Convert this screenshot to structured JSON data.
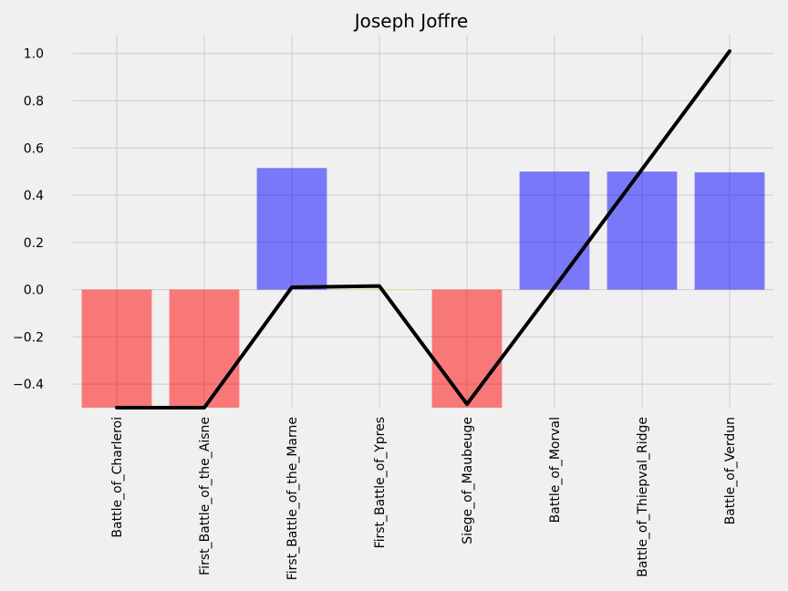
{
  "chart_data": {
    "type": "bar",
    "title": "Joseph Joffre",
    "categories": [
      "Battle_of_Charleroi",
      "First_Battle_of_the_Aisne",
      "First_Battle_of_the_Marne",
      "First_Battle_of_Ypres",
      "Siege_of_Maubeuge",
      "Battle_of_Morval",
      "Battle_of_Thiepval_Ridge",
      "Battle_of_Verdun"
    ],
    "values": [
      -0.5,
      -0.5,
      0.515,
      0.0,
      -0.5,
      0.5,
      0.5,
      0.497
    ],
    "bar_colors": [
      "#ff0000",
      "#ff0000",
      "#0000ff",
      "#ffff00",
      "#ff0000",
      "#0000ff",
      "#0000ff",
      "#0000ff"
    ],
    "line": {
      "values": [
        -0.5,
        -0.5,
        0.01,
        0.015,
        -0.485,
        0.01,
        0.51,
        1.01
      ],
      "color": "#000000"
    },
    "ylim": [
      -0.5,
      1.08
    ],
    "yticks": [
      "−0.4",
      "−0.2",
      "0.0",
      "0.2",
      "0.4",
      "0.6",
      "0.8",
      "1.0"
    ],
    "ytick_values": [
      -0.4,
      -0.2,
      0.0,
      0.2,
      0.4,
      0.6,
      0.8,
      1.0
    ],
    "grid": true,
    "background": "#f0f0f0"
  }
}
